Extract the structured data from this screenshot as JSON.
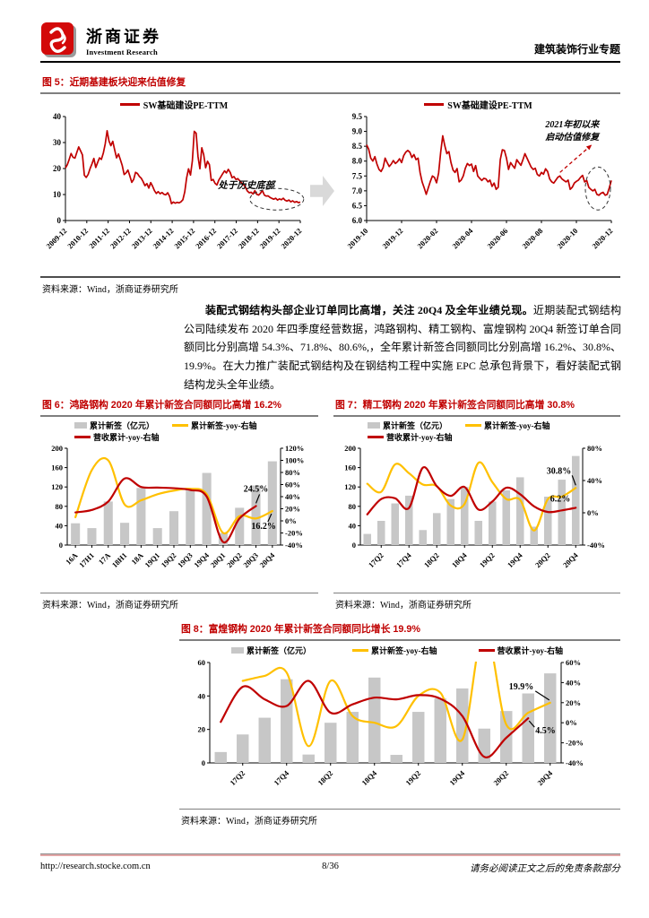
{
  "header": {
    "brand_cn": "浙商证券",
    "brand_en": "Investment Research",
    "report_tag": "建筑装饰行业专题"
  },
  "colors": {
    "accent_red": "#c00000",
    "line_yellow": "#ffc000",
    "bar_gray": "#c7c7c7",
    "arrow_gray": "#d9d9d9"
  },
  "figures": {
    "fig5": {
      "label": "图 5：",
      "title": "近期基建板块迎来估值修复",
      "source": "资料来源：Wind，浙商证券研究所"
    },
    "fig6": {
      "label": "图 6：",
      "title": "鸿路钢构 2020 年累计新签合同额同比高增 16.2%",
      "source": "资料来源：Wind，浙商证券研究所"
    },
    "fig7": {
      "label": "图 7：",
      "title": "精工钢构 2020 年累计新签合同额同比高增 30.8%",
      "source": "资料来源：Wind，浙商证券研究所"
    },
    "fig8": {
      "label": "图 8：",
      "title": "富煌钢构 2020 年累计新签合同额同比增长 19.9%",
      "source": "资料来源：Wind，浙商证券研究所"
    }
  },
  "paragraph": {
    "bold": "装配式钢结构头部企业订单同比高增，关注 20Q4 及全年业绩兑现。",
    "rest": "近期装配式钢结构公司陆续发布 2020 年四季度经营数据，鸿路钢构、精工钢构、富煌钢构 20Q4 新签订单合同额同比分别高增 54.3%、71.8%、80.6%,，全年累计新签合同额同比分别高增 16.2%、30.8%、19.9%。在大力推广装配式钢结构及在钢结构工程中实施 EPC 总承包背景下，看好装配式钢结构龙头全年业绩。"
  },
  "footer": {
    "url": "http://research.stocke.com.cn",
    "page": "8/36",
    "disclaimer": "请务必阅读正文之后的免责条款部分"
  },
  "chart_data": [
    {
      "id": "fig5_left",
      "type": "line",
      "title": "SW基础建设PE-TTM（2009-12 至 2020-12）",
      "legend": "SW基础建设PE-TTM",
      "line_color": "#c00000",
      "y_axis": {
        "min": 0,
        "max": 40,
        "ticks": [
          0,
          10,
          20,
          30,
          40
        ],
        "decimals": 0
      },
      "x_labels": [
        "2009-12",
        "2010-12",
        "2011-12",
        "2012-12",
        "2013-12",
        "2014-12",
        "2015-12",
        "2016-12",
        "2017-12",
        "2018-12",
        "2019-12",
        "2020-12"
      ],
      "annotations": [
        {
          "text": "处于历史底部"
        }
      ],
      "values": [
        20.2,
        21.5,
        23.5,
        25.8,
        24.3,
        24.0,
        26.2,
        28.3,
        26.8,
        25.2,
        17.4,
        16.6,
        17.8,
        20.0,
        21.8,
        23.9,
        20.4,
        22.3,
        24.1,
        23.5,
        26.0,
        29.5,
        34.5,
        30.6,
        28.8,
        30.5,
        27.2,
        24.1,
        25.6,
        23.4,
        21.1,
        17.7,
        18.3,
        19.4,
        17.2,
        14.7,
        15.8,
        18.5,
        18.1,
        17.0,
        16.3,
        15.0,
        13.4,
        14.2,
        12.5,
        14.6,
        13.2,
        11.5,
        10.4,
        11.1,
        10.3,
        10.8,
        10.1,
        9.9,
        10.7,
        9.3,
        6.5,
        7.1,
        6.7,
        7.0,
        6.8,
        7.2,
        8.0,
        11.0,
        16.4,
        19.9,
        17.5,
        23.0,
        34.3,
        33.6,
        24.6,
        19.9,
        28.0,
        25.4,
        20.3,
        22.8,
        21.5,
        15.4,
        15.8,
        14.3,
        13.7,
        15.6,
        16.8,
        18.0,
        19.1,
        18.3,
        19.7,
        18.5,
        16.5,
        16.9,
        15.8,
        16.1,
        15.3,
        14.5,
        13.9,
        12.9,
        11.4,
        10.7,
        10.9,
        10.2,
        11.5,
        10.1,
        9.8,
        10.5,
        11.6,
        9.8,
        9.4,
        9.5,
        8.9,
        8.5,
        8.2,
        8.6,
        7.9,
        8.3,
        8.0,
        8.6,
        7.8,
        7.5,
        7.9,
        7.2,
        7.6,
        7.0,
        7.3,
        6.9,
        7.1
      ]
    },
    {
      "id": "fig5_right",
      "type": "line",
      "title": "SW基础建设PE-TTM（2019-10 至 2021-01）",
      "legend": "SW基础建设PE-TTM",
      "line_color": "#c00000",
      "y_axis": {
        "min": 6.0,
        "max": 9.5,
        "ticks": [
          6.0,
          6.5,
          7.0,
          7.5,
          8.0,
          8.5,
          9.0,
          9.5
        ],
        "decimals": 1
      },
      "x_labels": [
        "2019-10",
        "2019-12",
        "2020-02",
        "2020-04",
        "2020-06",
        "2020-08",
        "2020-10",
        "2020-12"
      ],
      "annotations": [
        {
          "text": "2021年初以来"
        },
        {
          "text": "启动估值修复"
        }
      ],
      "values": [
        8.55,
        8.4,
        8.1,
        8.0,
        8.15,
        7.9,
        7.72,
        7.65,
        7.78,
        8.1,
        7.95,
        7.82,
        7.9,
        8.02,
        7.92,
        7.98,
        8.08,
        7.95,
        8.18,
        8.3,
        8.36,
        8.3,
        8.12,
        8.22,
        8.05,
        8.1,
        7.62,
        7.3,
        7.1,
        6.88,
        7.1,
        7.32,
        7.5,
        7.45,
        7.27,
        7.6,
        8.3,
        8.85,
        8.52,
        8.25,
        8.32,
        7.95,
        7.7,
        7.62,
        7.75,
        7.3,
        7.36,
        7.5,
        7.76,
        7.92,
        7.85,
        7.9,
        7.65,
        7.85,
        7.5,
        7.42,
        7.35,
        7.42,
        7.4,
        7.3,
        7.36,
        7.15,
        7.26,
        7.05,
        7.12,
        8.05,
        8.38,
        8.36,
        8.1,
        7.72,
        7.95,
        7.85,
        7.76,
        8.05,
        7.95,
        7.86,
        8.05,
        8.25,
        8.1,
        7.95,
        7.8,
        7.72,
        7.76,
        7.55,
        7.5,
        7.62,
        7.56,
        7.74,
        7.65,
        7.4,
        7.3,
        7.26,
        7.36,
        7.46,
        7.5,
        7.4,
        7.35,
        7.3,
        7.36,
        7.05,
        7.12,
        7.26,
        7.32,
        7.36,
        7.45,
        7.52,
        7.3,
        7.35,
        7.12,
        7.05,
        7.0,
        7.05,
        6.88,
        6.85,
        6.92,
        6.95,
        6.85,
        6.88,
        7.1,
        7.35
      ]
    },
    {
      "id": "fig6",
      "type": "bar",
      "title": "鸿路钢构 2020 年累计新签合同额同比高增 16.2%",
      "categories": [
        "16A",
        "17H1",
        "17A",
        "18H1",
        "18A",
        "19Q1",
        "19Q2",
        "19Q3",
        "19Q4",
        "20Q1",
        "20Q2",
        "20Q3",
        "20Q4"
      ],
      "x_tick_indices": [
        0,
        1,
        2,
        3,
        4,
        5,
        6,
        7,
        8,
        9,
        10,
        11,
        12
      ],
      "x_tick_labels": [
        "16A",
        "17H1",
        "17A",
        "18H1",
        "18A",
        "19Q1",
        "19Q2",
        "19Q3",
        "19Q4",
        "20Q1",
        "20Q2",
        "20Q3",
        "20Q4"
      ],
      "bars": {
        "name": "累计新签（亿元）",
        "color": "#c7c7c7",
        "axis": "left",
        "values": [
          45,
          35,
          90,
          46,
          118,
          35,
          70,
          117,
          149,
          25,
          77,
          123,
          173
        ]
      },
      "lines": [
        {
          "name": "累计新签-yoy-右轴",
          "color": "#ffc000",
          "axis": "right",
          "values": [
            6,
            84,
            100,
            27,
            34,
            44,
            50,
            53,
            44,
            -20,
            8,
            4,
            16.2
          ]
        },
        {
          "name": "营收累计-yoy-右轴",
          "color": "#c00000",
          "axis": "right",
          "values": [
            14,
            18,
            32,
            70,
            56,
            55,
            54,
            51,
            40,
            -35,
            4,
            24.5
          ]
        }
      ],
      "left_axis": {
        "min": 0,
        "max": 200,
        "ticks": [
          0,
          40,
          80,
          120,
          160,
          200
        ]
      },
      "right_axis": {
        "min": -40,
        "max": 120,
        "ticks": [
          -40,
          -20,
          0,
          20,
          40,
          60,
          80,
          100,
          120
        ],
        "format": "percent"
      },
      "annotations": [
        {
          "text": "24.5%"
        },
        {
          "text": "16.2%"
        }
      ]
    },
    {
      "id": "fig7",
      "type": "bar",
      "title": "精工钢构 2020 年累计新签合同额同比高增 30.8%",
      "categories": [
        "17Q1",
        "17Q2",
        "17Q3",
        "17Q4",
        "18Q1",
        "18Q2",
        "18Q3",
        "18Q4",
        "19Q1",
        "19Q2",
        "19Q3",
        "19Q4",
        "20Q1",
        "20Q2",
        "20Q3",
        "20Q4"
      ],
      "x_tick_indices": [
        1,
        3,
        5,
        7,
        9,
        11,
        13,
        15
      ],
      "x_tick_labels": [
        "17Q2",
        "17Q4",
        "18Q2",
        "18Q4",
        "19Q2",
        "19Q4",
        "20Q2",
        "20Q4"
      ],
      "bars": {
        "name": "累计新签（亿元）",
        "color": "#c7c7c7",
        "axis": "left",
        "values": [
          23,
          50,
          86,
          102,
          31,
          66,
          95,
          120,
          50,
          90,
          113,
          140,
          38,
          100,
          135,
          184
        ]
      },
      "lines": [
        {
          "name": "累计新签-yoy-右轴",
          "color": "#ffc000",
          "axis": "right",
          "values": [
            36,
            26,
            60,
            49,
            35,
            33,
            9,
            11,
            62,
            38,
            17,
            16,
            -22,
            17,
            20,
            30.8
          ]
        },
        {
          "name": "营收累计-yoy-右轴",
          "color": "#c00000",
          "axis": "right",
          "values": [
            -2,
            17,
            18,
            6,
            56,
            33,
            21,
            32,
            4,
            14,
            31,
            23,
            8,
            1,
            3,
            6.2
          ]
        }
      ],
      "left_axis": {
        "min": 0,
        "max": 200,
        "ticks": [
          0,
          40,
          80,
          120,
          160,
          200
        ]
      },
      "right_axis": {
        "min": -40,
        "max": 80,
        "ticks": [
          -40,
          0,
          40,
          80
        ],
        "format": "percent"
      },
      "annotations": [
        {
          "text": "30.8%"
        },
        {
          "text": "6.2%"
        }
      ]
    },
    {
      "id": "fig8",
      "type": "bar",
      "title": "富煌钢构 2020 年累计新签合同额同比增长 19.9%",
      "categories": [
        "17Q1",
        "17Q2",
        "17Q3",
        "17Q4",
        "18Q1",
        "18Q2",
        "18Q3",
        "18Q4",
        "19Q1",
        "19Q2",
        "19Q3",
        "19Q4",
        "20Q1",
        "20Q2",
        "20Q3",
        "20Q4"
      ],
      "x_tick_indices": [
        1,
        3,
        5,
        7,
        9,
        11,
        13,
        15
      ],
      "x_tick_labels": [
        "17Q2",
        "17Q4",
        "18Q2",
        "18Q4",
        "19Q2",
        "19Q4",
        "20Q2",
        "20Q4"
      ],
      "bars": {
        "name": "累计新签（亿元）",
        "color": "#c7c7c7",
        "axis": "left",
        "values": [
          6.5,
          17,
          27,
          50,
          5,
          24,
          30.5,
          51,
          4.8,
          30.5,
          38.5,
          44.5,
          20.5,
          31,
          41.5,
          53.5
        ]
      },
      "lines": [
        {
          "name": "累计新签-yoy-右轴",
          "color": "#ffc000",
          "axis": "right",
          "values": [
            null,
            41.7,
            46.7,
            50,
            -23.3,
            41.7,
            6.7,
            0,
            -3.3,
            26.7,
            30,
            -16.7,
            95,
            -1.7,
            10,
            19.9
          ]
        },
        {
          "name": "营收累计-yoy-右轴",
          "color": "#c00000",
          "axis": "right",
          "values": [
            0.8,
            35.8,
            23.3,
            16.7,
            41.7,
            10,
            18.3,
            25,
            23.3,
            27.5,
            24,
            6.7,
            -34,
            -15,
            4.5
          ]
        }
      ],
      "left_axis": {
        "min": 0,
        "max": 60,
        "ticks": [
          0,
          20,
          40,
          60
        ]
      },
      "right_axis": {
        "min": -40,
        "max": 60,
        "ticks": [
          -40,
          -20,
          0,
          20,
          40,
          60
        ],
        "format": "percent"
      },
      "annotations": [
        {
          "text": "19.9%"
        },
        {
          "text": "4.5%"
        }
      ]
    }
  ]
}
